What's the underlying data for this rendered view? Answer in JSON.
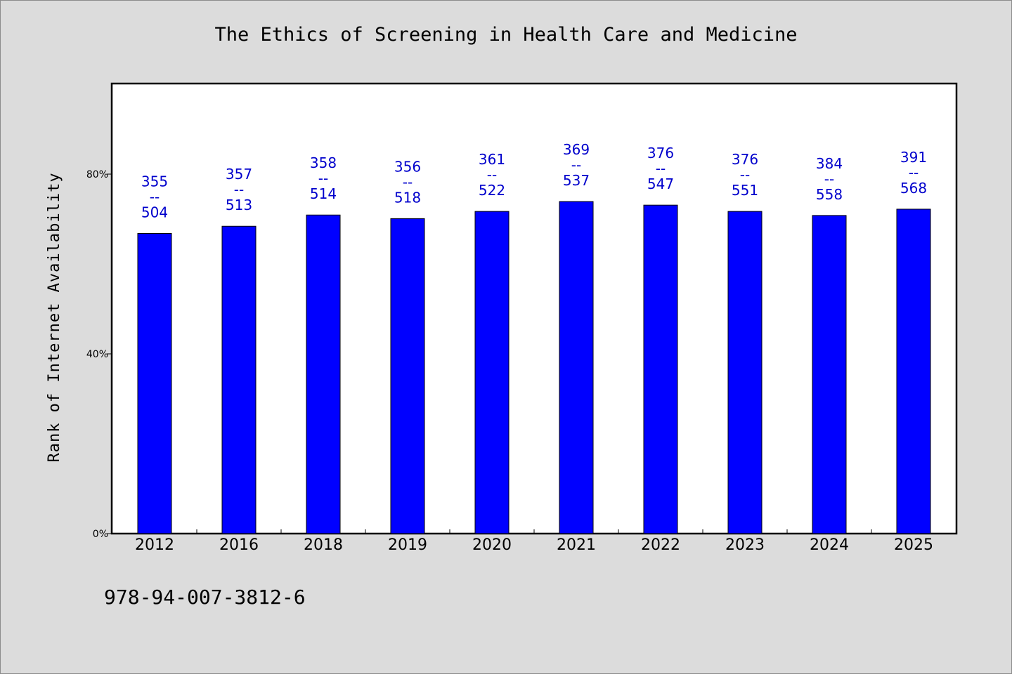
{
  "chart_data": {
    "type": "bar",
    "title": "The Ethics of Screening in Health Care and Medicine",
    "xlabel": "",
    "ylabel": "Rank of Internet Availability",
    "categories": [
      "2012",
      "2016",
      "2018",
      "2019",
      "2020",
      "2021",
      "2022",
      "2023",
      "2024",
      "2025"
    ],
    "series": [
      {
        "values": [
          66.8,
          68.4,
          70.9,
          70.1,
          71.7,
          73.9,
          73.1,
          71.7,
          70.8,
          72.2
        ]
      }
    ],
    "labels_top": [
      "355",
      "357",
      "358",
      "356",
      "361",
      "369",
      "376",
      "376",
      "384",
      "391"
    ],
    "labels_sep": "--",
    "labels_bottom": [
      "504",
      "513",
      "514",
      "518",
      "522",
      "537",
      "547",
      "551",
      "558",
      "568"
    ],
    "yticks": [
      0,
      40,
      80
    ],
    "ytick_labels": [
      "0%",
      "40%",
      "80%"
    ],
    "ylim": [
      0,
      100
    ],
    "grid": false,
    "bar_color": "#0000ff",
    "label_color": "#0000cc"
  },
  "footer": {
    "isbn": "978-94-007-3812-6"
  }
}
